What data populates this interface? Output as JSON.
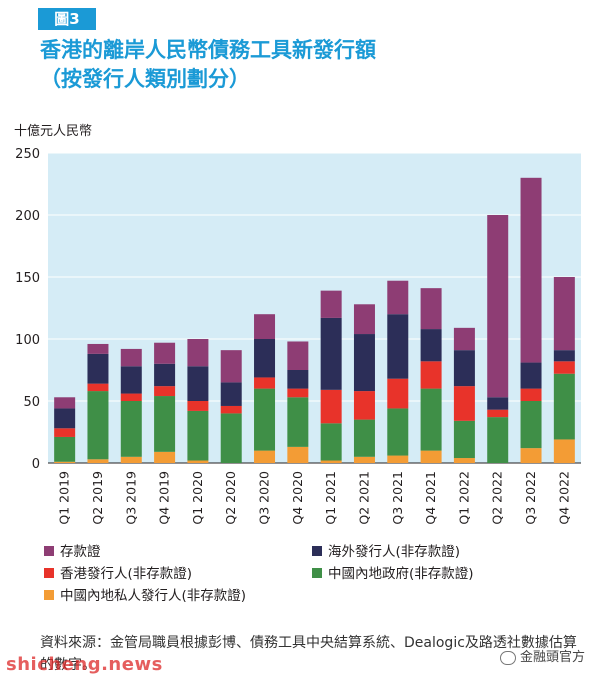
{
  "figure": {
    "badge": "圖3",
    "title_line1": "香港的離岸人民幣債務工具新發行額",
    "title_line2": "（按發行人類別劃分）",
    "unit": "十億元人民幣",
    "source": "資料來源：金管局職員根據彭博、債務工具中央結算系統、Dealogic及路透社數據估算的數字。"
  },
  "watermark": {
    "left": "shicheng.news",
    "right": "金融頭官方"
  },
  "chart_data": {
    "type": "bar",
    "stacked": true,
    "categories": [
      "Q1 2019",
      "Q2 2019",
      "Q3 2019",
      "Q4 2019",
      "Q1 2020",
      "Q2 2020",
      "Q3 2020",
      "Q4 2020",
      "Q1 2021",
      "Q2 2021",
      "Q3 2021",
      "Q4 2021",
      "Q1 2022",
      "Q2 2022",
      "Q3 2022",
      "Q4 2022"
    ],
    "ylim": [
      0,
      250
    ],
    "yticks": [
      0,
      50,
      100,
      150,
      200,
      250
    ],
    "ylabel": "十億元人民幣",
    "grid": true,
    "background": "#d5ecf6",
    "legend_position": "bottom",
    "series": [
      {
        "name": "中國內地私人發行人(非存款證)",
        "color": "#f39c35",
        "values": [
          1,
          3,
          5,
          9,
          2,
          0,
          10,
          13,
          2,
          5,
          6,
          10,
          4,
          0,
          12,
          19
        ]
      },
      {
        "name": "中國內地政府(非存款證)",
        "color": "#3f8f47",
        "values": [
          20,
          55,
          45,
          45,
          40,
          40,
          50,
          40,
          30,
          30,
          38,
          50,
          30,
          37,
          38,
          53
        ]
      },
      {
        "name": "香港發行人(非存款證)",
        "color": "#e8332a",
        "values": [
          7,
          6,
          6,
          8,
          8,
          6,
          9,
          7,
          27,
          23,
          24,
          22,
          28,
          6,
          10,
          10
        ]
      },
      {
        "name": "海外發行人(非存款證)",
        "color": "#2c2e58",
        "values": [
          16,
          24,
          22,
          18,
          28,
          19,
          31,
          15,
          58,
          46,
          52,
          26,
          29,
          10,
          21,
          9
        ]
      },
      {
        "name": "存款證",
        "color": "#8e3d74",
        "values": [
          9,
          8,
          14,
          17,
          22,
          26,
          20,
          23,
          22,
          24,
          27,
          33,
          18,
          147,
          149,
          59
        ]
      }
    ]
  },
  "legend_items": [
    {
      "label": "存款證",
      "color": "#8e3d74"
    },
    {
      "label": "海外發行人(非存款證)",
      "color": "#2c2e58"
    },
    {
      "label": "香港發行人(非存款證)",
      "color": "#e8332a"
    },
    {
      "label": "中國內地政府(非存款證)",
      "color": "#3f8f47"
    },
    {
      "label": "中國內地私人發行人(非存款證)",
      "color": "#f39c35"
    }
  ]
}
